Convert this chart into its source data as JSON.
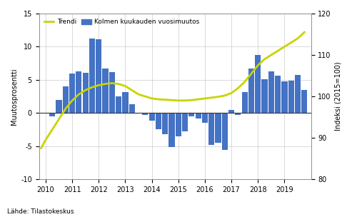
{
  "ylabel_left": "Muutosprosentti",
  "ylabel_right": "Indeksi (2015=100)",
  "source": "Lähde: Tilastokeskus",
  "legend_bar": "Kolmen kuukauden vuosimuutos",
  "legend_line": "Trendi",
  "ylim_left": [
    -10,
    15
  ],
  "ylim_right": [
    80,
    120
  ],
  "yticks_left": [
    -10,
    -5,
    0,
    5,
    10,
    15
  ],
  "yticks_right": [
    80,
    90,
    100,
    110,
    120
  ],
  "bar_color": "#4472c4",
  "line_color": "#c8d400",
  "background_color": "#ffffff",
  "grid_color": "#cccccc",
  "bar_x": [
    2010.25,
    2010.5,
    2010.75,
    2011.0,
    2011.25,
    2011.5,
    2011.75,
    2012.0,
    2012.25,
    2012.5,
    2012.75,
    2013.0,
    2013.25,
    2013.5,
    2013.75,
    2014.0,
    2014.25,
    2014.5,
    2014.75,
    2015.0,
    2015.25,
    2015.5,
    2015.75,
    2016.0,
    2016.25,
    2016.5,
    2016.75,
    2017.0,
    2017.25,
    2017.5,
    2017.75,
    2018.0,
    2018.25,
    2018.5,
    2018.75,
    2019.0,
    2019.25,
    2019.5,
    2019.75
  ],
  "bar_values": [
    -0.5,
    2.0,
    4.0,
    6.0,
    6.3,
    6.1,
    11.2,
    11.1,
    6.7,
    6.2,
    2.5,
    3.1,
    1.3,
    0.0,
    -0.3,
    -1.2,
    -2.5,
    -3.2,
    -5.2,
    -3.5,
    -2.8,
    -0.5,
    -0.8,
    -1.5,
    -4.8,
    -4.5,
    -5.6,
    0.5,
    -0.3,
    3.1,
    6.7,
    8.7,
    5.1,
    6.3,
    5.6,
    4.8,
    4.9,
    5.7,
    3.5
  ],
  "trend_x": [
    2009.83,
    2010.0,
    2010.25,
    2010.5,
    2010.75,
    2011.0,
    2011.25,
    2011.5,
    2011.75,
    2012.0,
    2012.25,
    2012.5,
    2012.75,
    2013.0,
    2013.25,
    2013.5,
    2013.75,
    2014.0,
    2014.25,
    2014.5,
    2014.75,
    2015.0,
    2015.25,
    2015.5,
    2015.75,
    2016.0,
    2016.25,
    2016.5,
    2016.75,
    2017.0,
    2017.25,
    2017.5,
    2017.75,
    2018.0,
    2018.25,
    2018.5,
    2018.75,
    2019.0,
    2019.25,
    2019.5,
    2019.75
  ],
  "trend_y": [
    87.5,
    89.5,
    92.0,
    94.5,
    97.0,
    99.0,
    100.5,
    101.5,
    102.2,
    102.7,
    103.0,
    103.2,
    103.0,
    102.5,
    101.5,
    100.5,
    100.0,
    99.5,
    99.3,
    99.2,
    99.1,
    99.0,
    99.0,
    99.1,
    99.3,
    99.5,
    99.7,
    99.9,
    100.2,
    100.8,
    102.0,
    103.5,
    105.5,
    107.5,
    109.0,
    110.0,
    111.0,
    112.0,
    113.0,
    114.0,
    115.5
  ],
  "xlim": [
    2009.75,
    2020.0
  ],
  "xticks": [
    2010,
    2011,
    2012,
    2013,
    2014,
    2015,
    2016,
    2017,
    2018,
    2019
  ]
}
